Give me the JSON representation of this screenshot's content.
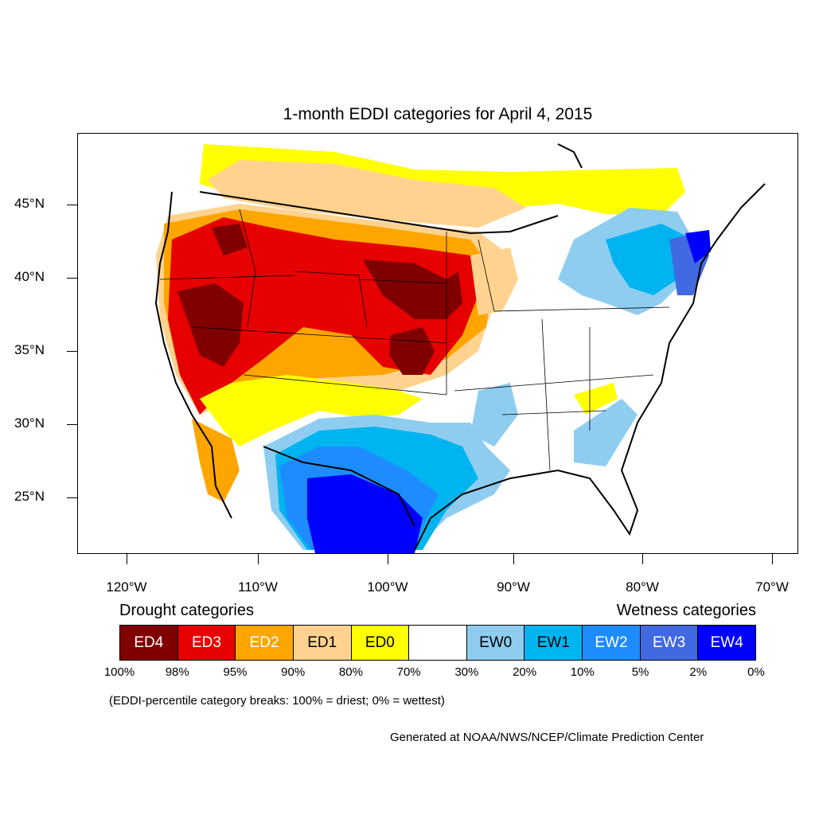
{
  "title": "1-month EDDI categories for April 4, 2015",
  "map": {
    "lat_labels": [
      "45°N",
      "40°N",
      "35°N",
      "30°N",
      "25°N"
    ],
    "lon_labels": [
      "120°W",
      "110°W",
      "100°W",
      "90°W",
      "80°W",
      "70°W"
    ]
  },
  "legend": {
    "drought_heading": "Drought categories",
    "wetness_heading": "Wetness categories",
    "categories": [
      {
        "label": "ED4",
        "color": "#800000",
        "text_color": "#ffffff"
      },
      {
        "label": "ED3",
        "color": "#e60000",
        "text_color": "#ffffff"
      },
      {
        "label": "ED2",
        "color": "#ffa500",
        "text_color": "#ffffff"
      },
      {
        "label": "ED1",
        "color": "#ffd38f",
        "text_color": "#000000"
      },
      {
        "label": "ED0",
        "color": "#ffff00",
        "text_color": "#000000"
      },
      {
        "label": "",
        "color": "#ffffff",
        "text_color": "#000000"
      },
      {
        "label": "EW0",
        "color": "#8ecdf0",
        "text_color": "#000000"
      },
      {
        "label": "EW1",
        "color": "#00b4f0",
        "text_color": "#000000"
      },
      {
        "label": "EW2",
        "color": "#1e8cff",
        "text_color": "#ffffff"
      },
      {
        "label": "EW3",
        "color": "#4169e1",
        "text_color": "#ffffff"
      },
      {
        "label": "EW4",
        "color": "#0000ff",
        "text_color": "#ffffff"
      }
    ],
    "breaks": [
      "100%",
      "98%",
      "95%",
      "90%",
      "80%",
      "70%",
      "30%",
      "20%",
      "10%",
      "5%",
      "2%",
      "0%"
    ]
  },
  "note": "(EDDI-percentile category breaks: 100% = driest; 0% = wettest)",
  "credit": "Generated at NOAA/NWS/NCEP/Climate Prediction Center"
}
